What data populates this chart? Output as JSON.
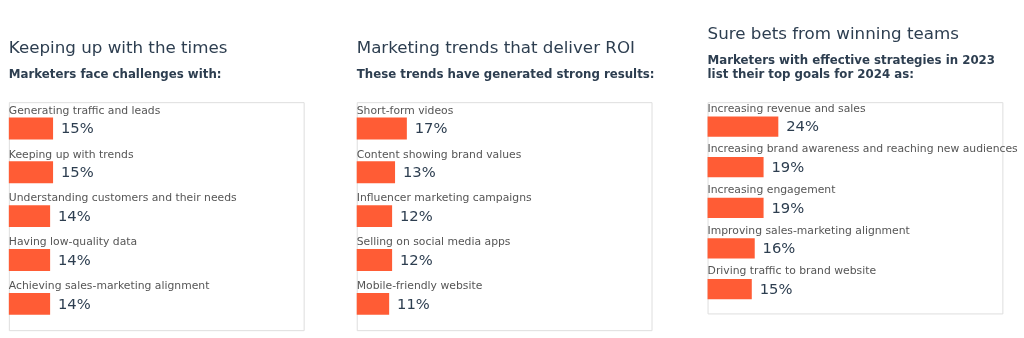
{
  "chart_data": [
    {
      "type": "bar",
      "orientation": "horizontal",
      "title": "Keeping up with the times",
      "subtitle": "Marketers face challenges with:",
      "categories": [
        "Generating traffic and leads",
        "Keeping up with trends",
        "Understanding customers and their needs",
        "Having low-quality data",
        "Achieving sales-marketing alignment"
      ],
      "values": [
        15,
        15,
        14,
        14,
        14
      ],
      "color": "#ff5c35",
      "xlim": [
        0,
        100
      ],
      "data_labels": true,
      "value_labels": [
        "15%",
        "15%",
        "14%",
        "14%",
        "14%"
      ]
    },
    {
      "type": "bar",
      "orientation": "horizontal",
      "title": "Marketing trends that deliver ROI",
      "subtitle": "These trends have generated strong results:",
      "categories": [
        "Short-form videos",
        "Content showing brand values",
        "Influencer marketing campaigns",
        "Selling on social media apps",
        "Mobile-friendly website"
      ],
      "values": [
        17,
        13,
        12,
        12,
        11
      ],
      "color": "#ff5c35",
      "xlim": [
        0,
        100
      ],
      "data_labels": true,
      "value_labels": [
        "17%",
        "13%",
        "12%",
        "12%",
        "11%"
      ]
    },
    {
      "type": "bar",
      "orientation": "horizontal",
      "title": "Sure bets from winning teams",
      "subtitle": "Marketers with effective strategies in 2023 list their top goals for 2024 as:",
      "categories": [
        "Increasing revenue and sales",
        "Increasing brand awareness and reaching new audiences",
        "Increasing engagement",
        "Improving sales-marketing alignment",
        "Driving traffic to brand website"
      ],
      "values": [
        24,
        19,
        19,
        16,
        15
      ],
      "color": "#ff5c35",
      "xlim": [
        0,
        100
      ],
      "data_labels": true,
      "value_labels": [
        "24%",
        "19%",
        "19%",
        "16%",
        "15%"
      ]
    }
  ]
}
